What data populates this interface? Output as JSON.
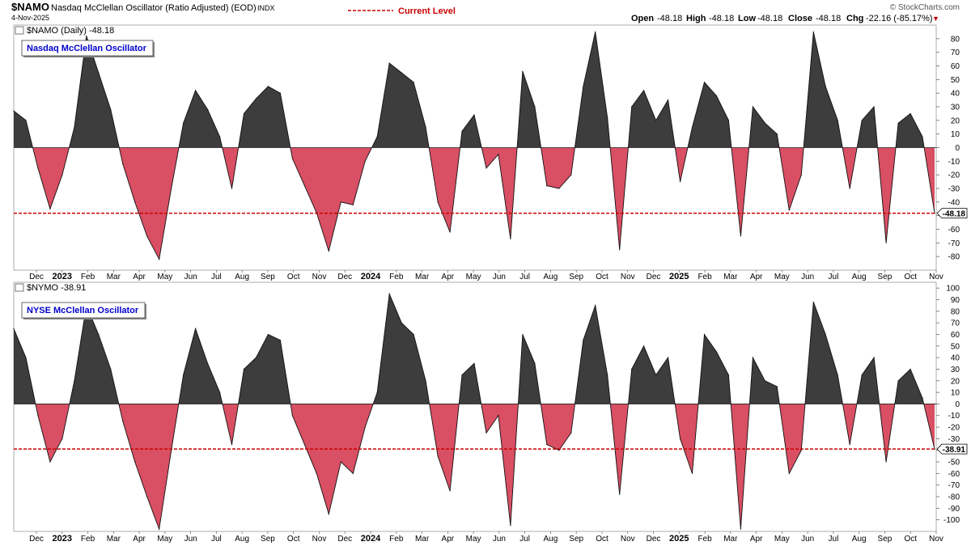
{
  "header": {
    "symbol": "$NAMO",
    "description": "Nasdaq McClellan Oscillator (Ratio Adjusted) (EOD)",
    "exchange": "INDX",
    "date": "4-Nov-2025",
    "legend_label": "Current Level",
    "watermark": "© StockCharts.com",
    "ohlc": {
      "open_label": "Open",
      "open": "-48.18",
      "high_label": "High",
      "high": "-48.18",
      "low_label": "Low",
      "low": "-48.18",
      "close_label": "Close",
      "close": "-48.18",
      "chg_label": "Chg",
      "chg": "-22.16 (-85.17%)"
    },
    "down_marker": "▼"
  },
  "colors": {
    "positive_fill": "#3d3d3d",
    "negative_fill": "#d94f63",
    "current_level_line": "#cc0000",
    "label_box_text": "#0000cc"
  },
  "chart_data": [
    {
      "type": "area",
      "title": "Nasdaq McClellan Oscillator",
      "panel_label": "$NAMO (Daily) -48.18",
      "ylim": [
        -90,
        90
      ],
      "yticks": [
        80,
        70,
        60,
        50,
        40,
        30,
        20,
        10,
        0,
        -10,
        -20,
        -30,
        -40,
        -50,
        -60,
        -70,
        -80
      ],
      "ytick_labels": [
        "80",
        "70",
        "60",
        "50",
        "40",
        "30",
        "20",
        "10",
        "0",
        "-10",
        "-20",
        "-30",
        "-40",
        "-50",
        "-60",
        "-70",
        "-80"
      ],
      "current_level": -48.18,
      "current_level_label": "-48.18",
      "xlabels": [
        "Dec",
        "2023",
        "Feb",
        "Mar",
        "Apr",
        "May",
        "Jun",
        "Jul",
        "Aug",
        "Sep",
        "Oct",
        "Nov",
        "Dec",
        "2024",
        "Feb",
        "Mar",
        "Apr",
        "May",
        "Jun",
        "Jul",
        "Aug",
        "Sep",
        "Oct",
        "Nov",
        "Dec",
        "2025",
        "Feb",
        "Mar",
        "Apr",
        "May",
        "Jun",
        "Jul",
        "Aug",
        "Sep",
        "Oct",
        "Nov"
      ],
      "x_start": "Nov 2022",
      "x_end": "4-Nov-2025",
      "x": [
        0,
        0.5,
        1,
        1.5,
        2,
        2.5,
        3,
        3.5,
        4,
        4.5,
        5,
        5.5,
        6,
        6.5,
        7,
        7.5,
        8,
        8.5,
        9,
        9.5,
        10,
        10.5,
        11,
        11.5,
        12,
        12.5,
        13,
        13.5,
        14,
        14.5,
        15,
        15.5,
        16,
        16.5,
        17,
        17.5,
        18,
        18.5,
        19,
        19.5,
        20,
        20.5,
        21,
        21.5,
        22,
        22.5,
        23,
        23.5,
        24,
        24.5,
        25,
        25.5,
        26,
        26.5,
        27,
        27.5,
        28,
        28.5,
        29,
        29.5,
        30,
        30.5,
        31,
        31.5,
        32,
        32.5,
        33,
        33.5,
        34,
        34.5,
        35,
        35.5,
        36,
        36.5,
        37,
        37.5,
        38
      ],
      "values": [
        27,
        20,
        -15,
        -45,
        -20,
        15,
        82,
        55,
        28,
        -12,
        -40,
        -65,
        -82,
        -30,
        18,
        42,
        28,
        8,
        -30,
        25,
        36,
        45,
        40,
        -8,
        -28,
        -48,
        -76,
        -40,
        -42,
        -10,
        8,
        62,
        55,
        48,
        15,
        -40,
        -62,
        12,
        24,
        -15,
        -5,
        -67,
        56,
        30,
        -28,
        -30,
        -20,
        45,
        85,
        22,
        -75,
        30,
        42,
        20,
        35,
        -25,
        15,
        48,
        38,
        20,
        -65,
        30,
        18,
        10,
        -46,
        -20,
        85,
        45,
        20,
        -30,
        20,
        30,
        -70,
        18,
        25,
        8,
        -48.18
      ]
    },
    {
      "type": "area",
      "title": "NYSE McClellan Oscillator",
      "panel_label": "$NYMO -38.91",
      "ylim": [
        -110,
        105
      ],
      "yticks": [
        100,
        90,
        80,
        70,
        60,
        50,
        40,
        30,
        20,
        10,
        0,
        -10,
        -20,
        -30,
        -40,
        -50,
        -60,
        -70,
        -80,
        -90,
        -100
      ],
      "ytick_labels": [
        "100",
        "90",
        "80",
        "70",
        "60",
        "50",
        "40",
        "30",
        "20",
        "10",
        "0",
        "-10",
        "-20",
        "-30",
        "-40",
        "-50",
        "-60",
        "-70",
        "-80",
        "-90",
        "-100"
      ],
      "current_level": -38.91,
      "current_level_label": "-38.91",
      "xlabels": [
        "Dec",
        "2023",
        "Feb",
        "Mar",
        "Apr",
        "May",
        "Jun",
        "Jul",
        "Aug",
        "Sep",
        "Oct",
        "Nov",
        "Dec",
        "2024",
        "Feb",
        "Mar",
        "Apr",
        "May",
        "Jun",
        "Jul",
        "Aug",
        "Sep",
        "Oct",
        "Nov",
        "Dec",
        "2025",
        "Feb",
        "Mar",
        "Apr",
        "May",
        "Jun",
        "Jul",
        "Aug",
        "Sep",
        "Oct",
        "Nov"
      ],
      "x_start": "Nov 2022",
      "x_end": "4-Nov-2025",
      "x": [
        0,
        0.5,
        1,
        1.5,
        2,
        2.5,
        3,
        3.5,
        4,
        4.5,
        5,
        5.5,
        6,
        6.5,
        7,
        7.5,
        8,
        8.5,
        9,
        9.5,
        10,
        10.5,
        11,
        11.5,
        12,
        12.5,
        13,
        13.5,
        14,
        14.5,
        15,
        15.5,
        16,
        16.5,
        17,
        17.5,
        18,
        18.5,
        19,
        19.5,
        20,
        20.5,
        21,
        21.5,
        22,
        22.5,
        23,
        23.5,
        24,
        24.5,
        25,
        25.5,
        26,
        26.5,
        27,
        27.5,
        28,
        28.5,
        29,
        29.5,
        30,
        30.5,
        31,
        31.5,
        32,
        32.5,
        33,
        33.5,
        34,
        34.5,
        35,
        35.5,
        36,
        36.5,
        37,
        37.5,
        38
      ],
      "values": [
        65,
        40,
        -10,
        -50,
        -30,
        20,
        85,
        60,
        30,
        -15,
        -50,
        -80,
        -108,
        -40,
        25,
        65,
        35,
        10,
        -35,
        30,
        40,
        60,
        55,
        -10,
        -35,
        -60,
        -95,
        -50,
        -60,
        -20,
        10,
        95,
        70,
        60,
        20,
        -45,
        -75,
        25,
        35,
        -25,
        -10,
        -105,
        60,
        35,
        -35,
        -40,
        -25,
        55,
        85,
        25,
        -78,
        30,
        50,
        25,
        40,
        -30,
        -60,
        60,
        45,
        25,
        -108,
        40,
        20,
        15,
        -60,
        -40,
        88,
        60,
        25,
        -35,
        25,
        40,
        -50,
        20,
        30,
        5,
        -38.91
      ]
    }
  ]
}
